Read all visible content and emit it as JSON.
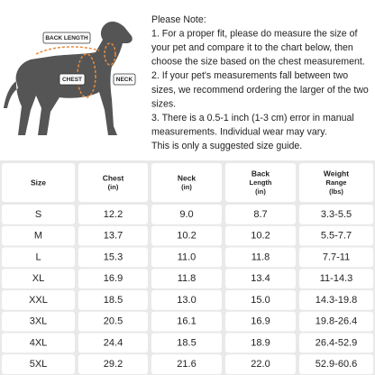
{
  "diagram": {
    "labels": [
      "BACK LENGTH",
      "CHEST",
      "NECK"
    ]
  },
  "note": {
    "lines": [
      "Please Note:",
      "1. For a proper fit, please do measure the size of",
      "your pet and compare it to the chart below, then",
      "choose the size based on the chest measurement.",
      "2. If your pet's measurements fall between two",
      "sizes, we recommend ordering the larger of the two",
      "sizes.",
      "3. There is a 0.5-1 inch (1-3 cm) error in manual",
      "measurements. Individual wear may vary.",
      "This is only a suggested size guide."
    ]
  },
  "table": {
    "header": [
      [
        "Size"
      ],
      [
        "Chest",
        "(in)"
      ],
      [
        "Neck",
        "(in)"
      ],
      [
        "Back",
        "Length",
        "(in)"
      ],
      [
        "Weight",
        "Range",
        "(lbs)"
      ]
    ],
    "rows": [
      [
        "S",
        "12.2",
        "9.0",
        "8.7",
        "3.3-5.5"
      ],
      [
        "M",
        "13.7",
        "10.2",
        "10.2",
        "5.5-7.7"
      ],
      [
        "L",
        "15.3",
        "11.0",
        "11.8",
        "7.7-11"
      ],
      [
        "XL",
        "16.9",
        "11.8",
        "13.4",
        "11-14.3"
      ],
      [
        "XXL",
        "18.5",
        "13.0",
        "15.0",
        "14.3-19.8"
      ],
      [
        "3XL",
        "20.5",
        "16.1",
        "16.9",
        "19.8-26.4"
      ],
      [
        "4XL",
        "24.4",
        "18.5",
        "18.9",
        "26.4-52.9"
      ],
      [
        "5XL",
        "29.2",
        "21.6",
        "22.0",
        "52.9-60.6"
      ]
    ]
  }
}
